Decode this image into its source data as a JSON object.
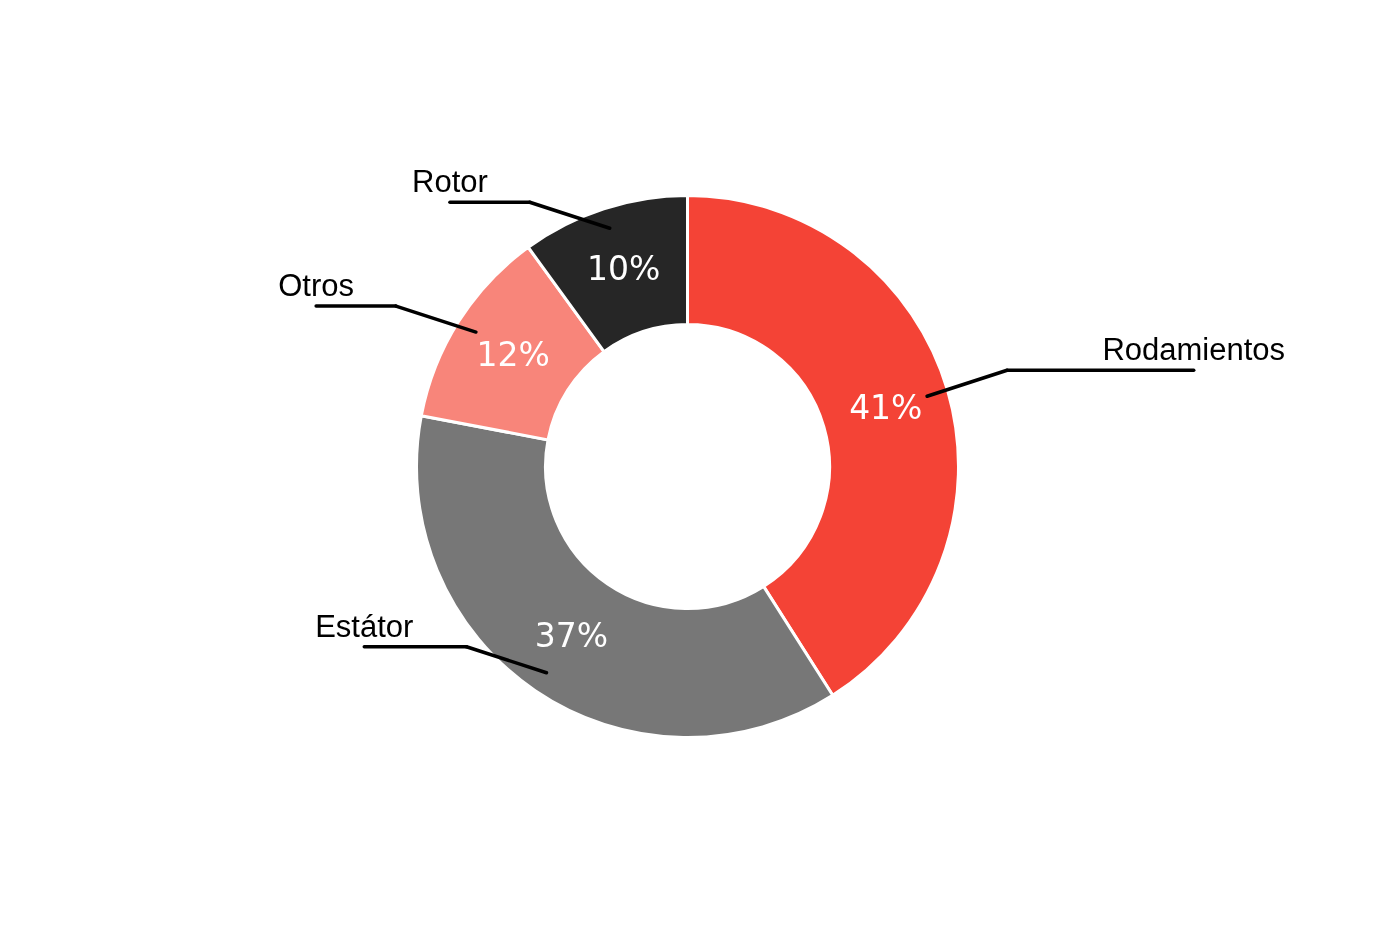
{
  "chart_data": {
    "type": "donut",
    "categories": [
      "Rodamientos",
      "Estátor",
      "Otros",
      "Rotor"
    ],
    "values": [
      41,
      37,
      12,
      10
    ],
    "colors": [
      "#f44336",
      "#777777",
      "#f8857a",
      "#262626"
    ],
    "value_labels": [
      "41%",
      "37%",
      "12%",
      "10%"
    ]
  }
}
